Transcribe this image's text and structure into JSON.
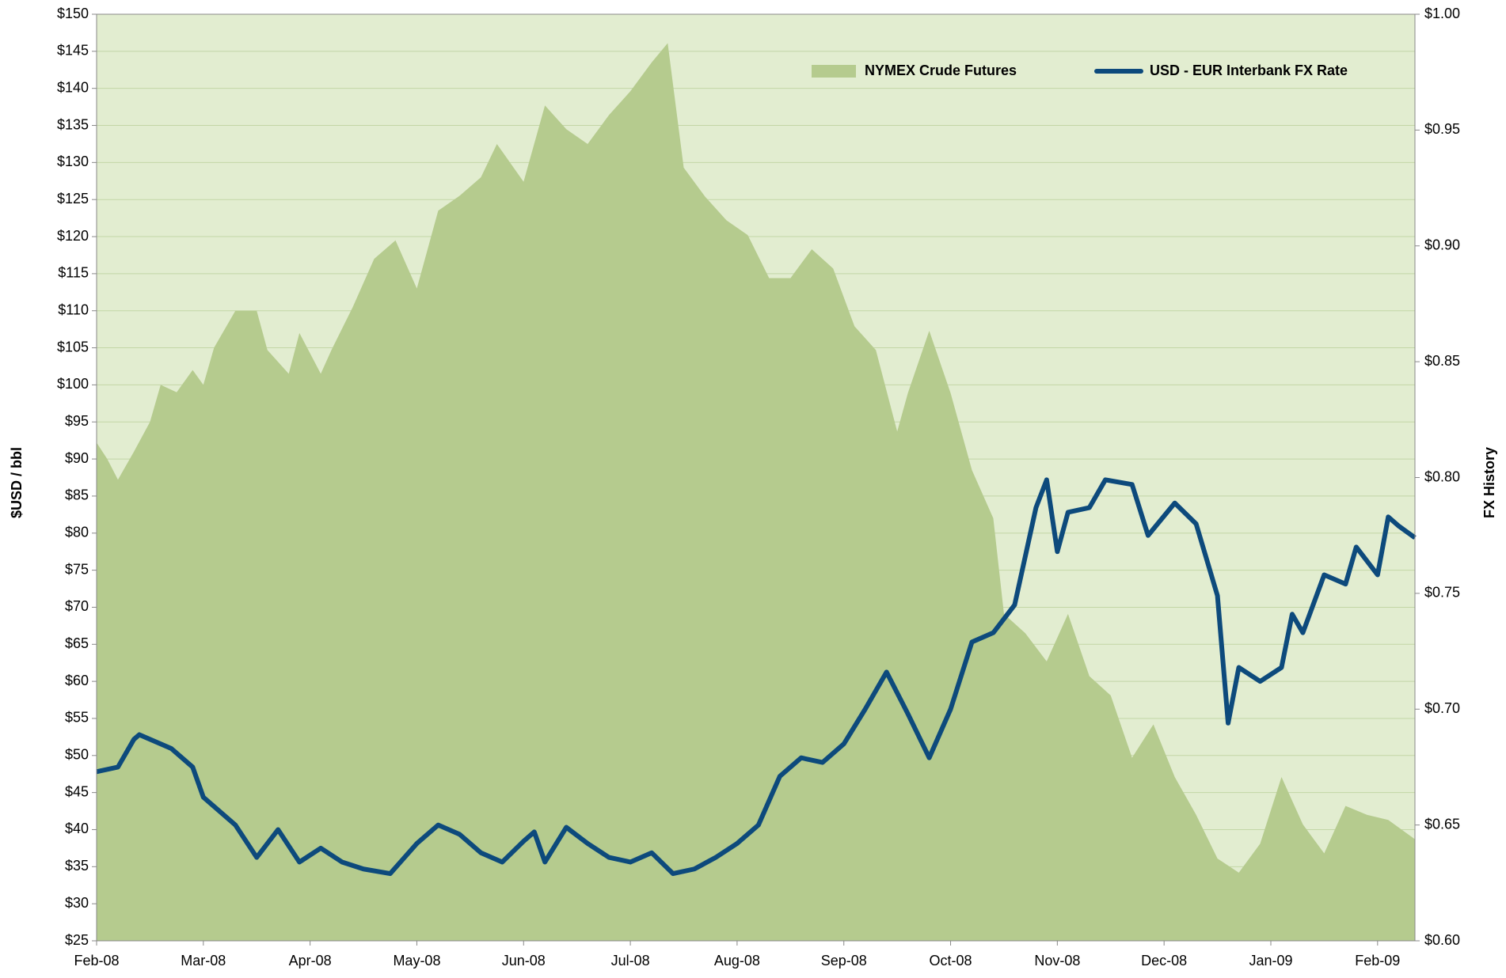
{
  "chart_data": {
    "type": "area-line",
    "y_label": "$USD / bbl",
    "y2_label": "FX History",
    "xlim": [
      0,
      12.35
    ],
    "xticks": [
      {
        "value": 0,
        "label": "Feb-08"
      },
      {
        "value": 1,
        "label": "Mar-08"
      },
      {
        "value": 2,
        "label": "Apr-08"
      },
      {
        "value": 3,
        "label": "May-08"
      },
      {
        "value": 4,
        "label": "Jun-08"
      },
      {
        "value": 5,
        "label": "Jul-08"
      },
      {
        "value": 6,
        "label": "Aug-08"
      },
      {
        "value": 7,
        "label": "Sep-08"
      },
      {
        "value": 8,
        "label": "Oct-08"
      },
      {
        "value": 9,
        "label": "Nov-08"
      },
      {
        "value": 10,
        "label": "Dec-08"
      },
      {
        "value": 11,
        "label": "Jan-09"
      },
      {
        "value": 12,
        "label": "Feb-09"
      }
    ],
    "ylim": [
      25,
      150
    ],
    "yticks": [
      {
        "value": 25,
        "label": "$25"
      },
      {
        "value": 30,
        "label": "$30"
      },
      {
        "value": 35,
        "label": "$35"
      },
      {
        "value": 40,
        "label": "$40"
      },
      {
        "value": 45,
        "label": "$45"
      },
      {
        "value": 50,
        "label": "$50"
      },
      {
        "value": 55,
        "label": "$55"
      },
      {
        "value": 60,
        "label": "$60"
      },
      {
        "value": 65,
        "label": "$65"
      },
      {
        "value": 70,
        "label": "$70"
      },
      {
        "value": 75,
        "label": "$75"
      },
      {
        "value": 80,
        "label": "$80"
      },
      {
        "value": 85,
        "label": "$85"
      },
      {
        "value": 90,
        "label": "$90"
      },
      {
        "value": 95,
        "label": "$95"
      },
      {
        "value": 100,
        "label": "$100"
      },
      {
        "value": 105,
        "label": "$105"
      },
      {
        "value": 110,
        "label": "$110"
      },
      {
        "value": 115,
        "label": "$115"
      },
      {
        "value": 120,
        "label": "$120"
      },
      {
        "value": 125,
        "label": "$125"
      },
      {
        "value": 130,
        "label": "$130"
      },
      {
        "value": 135,
        "label": "$135"
      },
      {
        "value": 140,
        "label": "$140"
      },
      {
        "value": 145,
        "label": "$145"
      },
      {
        "value": 150,
        "label": "$150"
      }
    ],
    "y2lim": [
      0.6,
      1.0
    ],
    "y2ticks": [
      {
        "value": 0.6,
        "label": "$0.60"
      },
      {
        "value": 0.65,
        "label": "$0.65"
      },
      {
        "value": 0.7,
        "label": "$0.70"
      },
      {
        "value": 0.75,
        "label": "$0.75"
      },
      {
        "value": 0.8,
        "label": "$0.80"
      },
      {
        "value": 0.85,
        "label": "$0.85"
      },
      {
        "value": 0.9,
        "label": "$0.90"
      },
      {
        "value": 0.95,
        "label": "$0.95"
      },
      {
        "value": 1.0,
        "label": "$1.00"
      }
    ],
    "grid": true,
    "legend": "top-right",
    "series": [
      {
        "name": "NYMEX Crude Futures",
        "kind": "area",
        "color": "#b5cb8e",
        "x": [
          0,
          0.1,
          0.2,
          0.35,
          0.5,
          0.6,
          0.75,
          0.9,
          1.0,
          1.1,
          1.3,
          1.5,
          1.6,
          1.8,
          1.9,
          2.1,
          2.2,
          2.4,
          2.6,
          2.8,
          3.0,
          3.2,
          3.4,
          3.6,
          3.75,
          4.0,
          4.2,
          4.4,
          4.6,
          4.8,
          5.0,
          5.2,
          5.35,
          5.5,
          5.7,
          5.9,
          6.1,
          6.3,
          6.5,
          6.7,
          6.9,
          7.1,
          7.3,
          7.5,
          7.6,
          7.8,
          8.0,
          8.2,
          8.4,
          8.5,
          8.7,
          8.9,
          9.1,
          9.3,
          9.5,
          9.7,
          9.9,
          10.1,
          10.3,
          10.5,
          10.7,
          10.9,
          11.1,
          11.3,
          11.5,
          11.7,
          11.9,
          12.1,
          12.35
        ],
        "values": [
          92.2,
          90,
          87.2,
          91,
          95,
          100,
          99,
          102,
          100,
          105,
          110,
          110,
          104.7,
          101.5,
          107,
          101.5,
          104.7,
          110.5,
          117,
          119.5,
          113,
          123.5,
          125.5,
          128,
          132.5,
          127.4,
          137.7,
          134.5,
          132.5,
          136.4,
          139.6,
          143.5,
          146.1,
          129.3,
          125.4,
          122.2,
          120.2,
          114.4,
          114.4,
          118.3,
          115.7,
          107.9,
          104.7,
          93.7,
          98.9,
          107.3,
          98.9,
          88.5,
          82,
          69.1,
          66.5,
          62.7,
          69.1,
          60.7,
          58.1,
          49.7,
          54.2,
          47.1,
          42,
          36.1,
          34.2,
          38.1,
          47.1,
          40.7,
          36.8,
          43.2,
          42,
          41.3,
          38.7
        ]
      },
      {
        "name": "USD - EUR Interbank FX Rate",
        "kind": "line",
        "axis": "y2",
        "color": "#0d4a7c",
        "x": [
          0,
          0.2,
          0.35,
          0.4,
          0.7,
          0.9,
          1.0,
          1.3,
          1.5,
          1.7,
          1.9,
          2.1,
          2.3,
          2.5,
          2.75,
          3.0,
          3.2,
          3.4,
          3.6,
          3.8,
          4.0,
          4.1,
          4.2,
          4.4,
          4.6,
          4.8,
          5.0,
          5.2,
          5.4,
          5.6,
          5.8,
          6.0,
          6.2,
          6.4,
          6.6,
          6.8,
          7.0,
          7.2,
          7.4,
          7.6,
          7.8,
          8.0,
          8.2,
          8.4,
          8.6,
          8.8,
          8.9,
          9.0,
          9.1,
          9.3,
          9.45,
          9.7,
          9.85,
          10.1,
          10.3,
          10.5,
          10.6,
          10.7,
          10.9,
          11.1,
          11.2,
          11.3,
          11.5,
          11.7,
          11.8,
          12.0,
          12.1,
          12.2,
          12.35
        ],
        "values": [
          0.673,
          0.675,
          0.687,
          0.689,
          0.683,
          0.675,
          0.662,
          0.65,
          0.636,
          0.648,
          0.634,
          0.64,
          0.634,
          0.631,
          0.629,
          0.642,
          0.65,
          0.646,
          0.638,
          0.634,
          0.643,
          0.647,
          0.634,
          0.649,
          0.642,
          0.636,
          0.634,
          0.638,
          0.629,
          0.631,
          0.636,
          0.642,
          0.65,
          0.671,
          0.679,
          0.677,
          0.685,
          0.7,
          0.716,
          0.698,
          0.679,
          0.7,
          0.729,
          0.733,
          0.745,
          0.787,
          0.799,
          0.768,
          0.785,
          0.787,
          0.799,
          0.797,
          0.775,
          0.789,
          0.78,
          0.749,
          0.694,
          0.718,
          0.712,
          0.718,
          0.741,
          0.733,
          0.758,
          0.754,
          0.77,
          0.758,
          0.783,
          0.779,
          0.774
        ]
      }
    ]
  }
}
